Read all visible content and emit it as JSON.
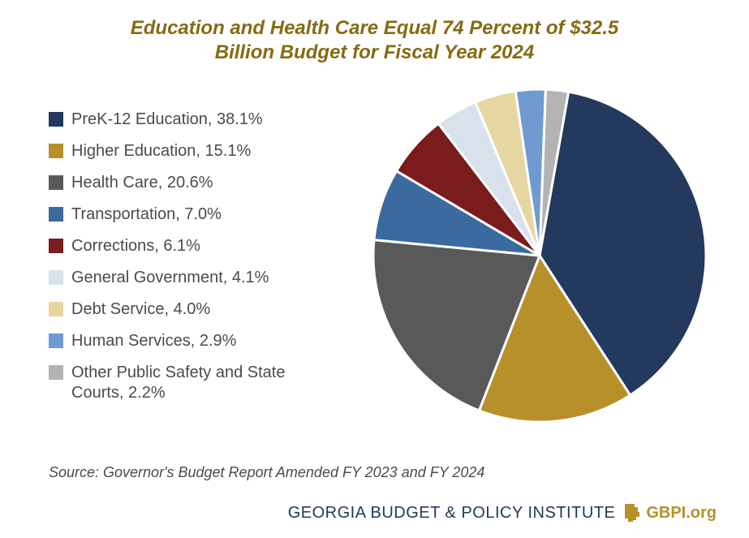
{
  "title_line1": "Education and Health Care Equal 74 Percent of $32.5",
  "title_line2": "Billion Budget for Fiscal Year 2024",
  "title_color": "#856b12",
  "title_fontsize": 24,
  "chart": {
    "type": "pie",
    "background_color": "#ffffff",
    "slice_gap_color": "#ffffff",
    "slice_gap_width": 3,
    "start_angle_deg": -80,
    "direction": "clockwise",
    "slices": [
      {
        "label": "PreK-12 Education, 38.1%",
        "value": 38.1,
        "color": "#23395d"
      },
      {
        "label": "Higher Education, 15.1%",
        "value": 15.1,
        "color": "#b8902a"
      },
      {
        "label": "Health Care, 20.6%",
        "value": 20.6,
        "color": "#595959"
      },
      {
        "label": "Transportation, 7.0%",
        "value": 7.0,
        "color": "#3b6aa0"
      },
      {
        "label": "Corrections, 6.1%",
        "value": 6.1,
        "color": "#7a1c1c"
      },
      {
        "label": "General Government, 4.1%",
        "value": 4.1,
        "color": "#d8e1ec"
      },
      {
        "label": "Debt Service, 4.0%",
        "value": 4.0,
        "color": "#e6d7a2"
      },
      {
        "label": "Human Services, 2.9%",
        "value": 2.9,
        "color": "#6f9bd1"
      },
      {
        "label": "Other Public Safety and State Courts, 2.2%",
        "value": 2.2,
        "color": "#b3b3b3"
      }
    ],
    "legend_fontsize": 20,
    "legend_text_color": "#4b4b4b",
    "swatch_size": 18
  },
  "source": "Source: Governor's Budget Report Amended FY 2023 and FY 2024",
  "source_fontsize": 18,
  "footer": {
    "org": "GEORGIA BUDGET & POLICY INSTITUTE",
    "org_color": "#23395d",
    "site": "GBPI.org",
    "site_color": "#b8902a",
    "icon_color": "#b8902a"
  }
}
